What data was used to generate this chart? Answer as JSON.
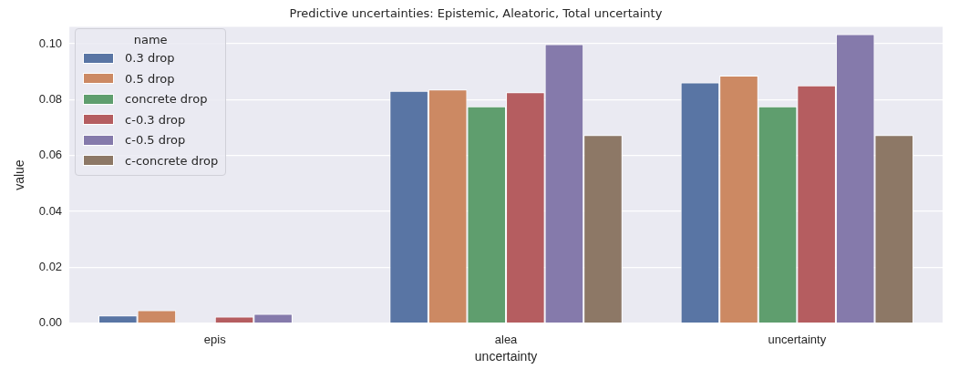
{
  "chart_data": {
    "type": "bar",
    "title": "Predictive uncertainties: Epistemic, Aleatoric, Total uncertainty",
    "xlabel": "uncertainty",
    "ylabel": "value",
    "legend_title": "name",
    "categories": [
      "epis",
      "alea",
      "uncertainty"
    ],
    "series": [
      {
        "name": "0.3 drop",
        "color": "#5975a4",
        "values": [
          0.0027,
          0.0831,
          0.0861
        ]
      },
      {
        "name": "0.5 drop",
        "color": "#cc8963",
        "values": [
          0.0046,
          0.0836,
          0.0886
        ]
      },
      {
        "name": "concrete drop",
        "color": "#5f9e6e",
        "values": [
          0,
          0.0776,
          0.0776
        ]
      },
      {
        "name": "c-0.3 drop",
        "color": "#b55d60",
        "values": [
          0.0023,
          0.0826,
          0.0851
        ]
      },
      {
        "name": "c-0.5 drop",
        "color": "#857aab",
        "values": [
          0.0033,
          0.0998,
          0.1034
        ]
      },
      {
        "name": "c-concrete drop",
        "color": "#8d7866",
        "values": [
          0,
          0.0673,
          0.0673
        ]
      }
    ],
    "ylim": [
      0,
      0.106
    ],
    "yticks": [
      {
        "value": 0,
        "label": "0.00"
      },
      {
        "value": 0.02,
        "label": "0.02"
      },
      {
        "value": 0.04,
        "label": "0.04"
      },
      {
        "value": 0.06,
        "label": "0.06"
      },
      {
        "value": 0.08,
        "label": "0.08"
      },
      {
        "value": 0.1,
        "label": "0.10"
      }
    ],
    "grid": "y",
    "legend": "top left"
  }
}
